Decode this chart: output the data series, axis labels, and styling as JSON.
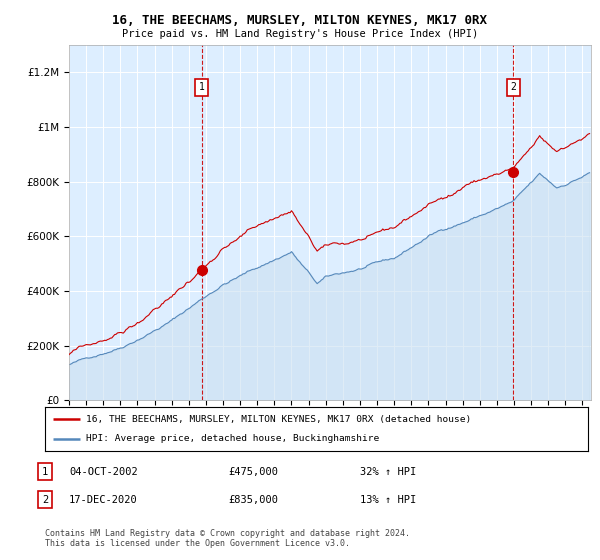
{
  "title": "16, THE BEECHAMS, MURSLEY, MILTON KEYNES, MK17 0RX",
  "subtitle": "Price paid vs. HM Land Registry's House Price Index (HPI)",
  "ylim": [
    0,
    1300000
  ],
  "yticks": [
    0,
    200000,
    400000,
    600000,
    800000,
    1000000,
    1200000
  ],
  "ytick_labels": [
    "£0",
    "£200K",
    "£400K",
    "£600K",
    "£800K",
    "£1M",
    "£1.2M"
  ],
  "house_color": "#cc0000",
  "hpi_color": "#5588bb",
  "hpi_fill_color": "#cce0f0",
  "sale1_x": 2002.75,
  "sale1_y": 475000,
  "sale1_label": "1",
  "sale2_x": 2020.96,
  "sale2_y": 835000,
  "sale2_label": "2",
  "legend_house": "16, THE BEECHAMS, MURSLEY, MILTON KEYNES, MK17 0RX (detached house)",
  "legend_hpi": "HPI: Average price, detached house, Buckinghamshire",
  "annotation1_date": "04-OCT-2002",
  "annotation1_price": "£475,000",
  "annotation1_hpi": "32% ↑ HPI",
  "annotation2_date": "17-DEC-2020",
  "annotation2_price": "£835,000",
  "annotation2_hpi": "13% ↑ HPI",
  "footer": "Contains HM Land Registry data © Crown copyright and database right 2024.\nThis data is licensed under the Open Government Licence v3.0.",
  "xmin": 1995,
  "xmax": 2025.5,
  "background_color": "#ddeeff"
}
